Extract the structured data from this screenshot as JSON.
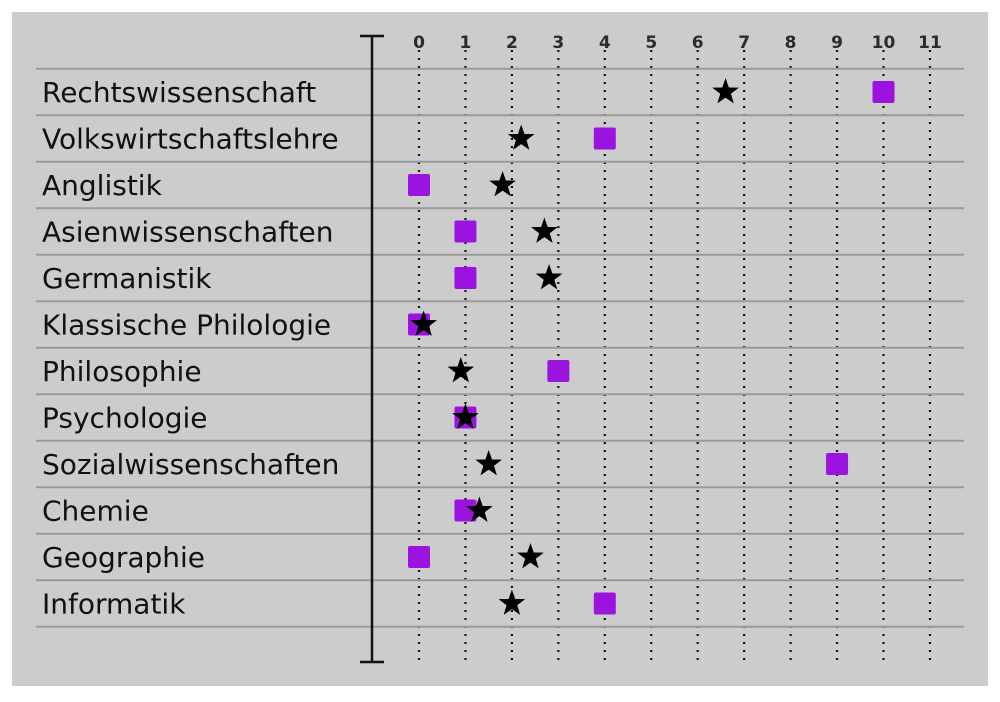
{
  "chart_data": {
    "type": "scatter",
    "title": "",
    "xlabel": "",
    "ylabel": "",
    "xlim": [
      0,
      11
    ],
    "x_ticks": [
      0,
      1,
      2,
      3,
      4,
      5,
      6,
      7,
      8,
      9,
      10,
      11
    ],
    "tick_labels": [
      "0",
      "1",
      "2",
      "3",
      "4",
      "5",
      "6",
      "7",
      "8",
      "9",
      "10",
      "11"
    ],
    "grid": "vertical dotted",
    "legend": "none",
    "categories": [
      "Rechtswissenschaft",
      "Volkswirtschaftslehre",
      "Anglistik",
      "Asienwissenschaften",
      "Germanistik",
      "Klassische Philologie",
      "Philosophie",
      "Psychologie",
      "Sozialwissenschaften",
      "Chemie",
      "Geographie",
      "Informatik"
    ],
    "series": [
      {
        "marker": "square",
        "color": "#9c13e0",
        "values": [
          10,
          4,
          0,
          1,
          1,
          0,
          3,
          1,
          9,
          1,
          0,
          4
        ]
      },
      {
        "marker": "star",
        "color": "#000000",
        "values": [
          6.6,
          2.2,
          1.8,
          2.7,
          2.8,
          0.1,
          0.9,
          1.0,
          1.5,
          1.3,
          2.4,
          2.0
        ]
      }
    ]
  }
}
